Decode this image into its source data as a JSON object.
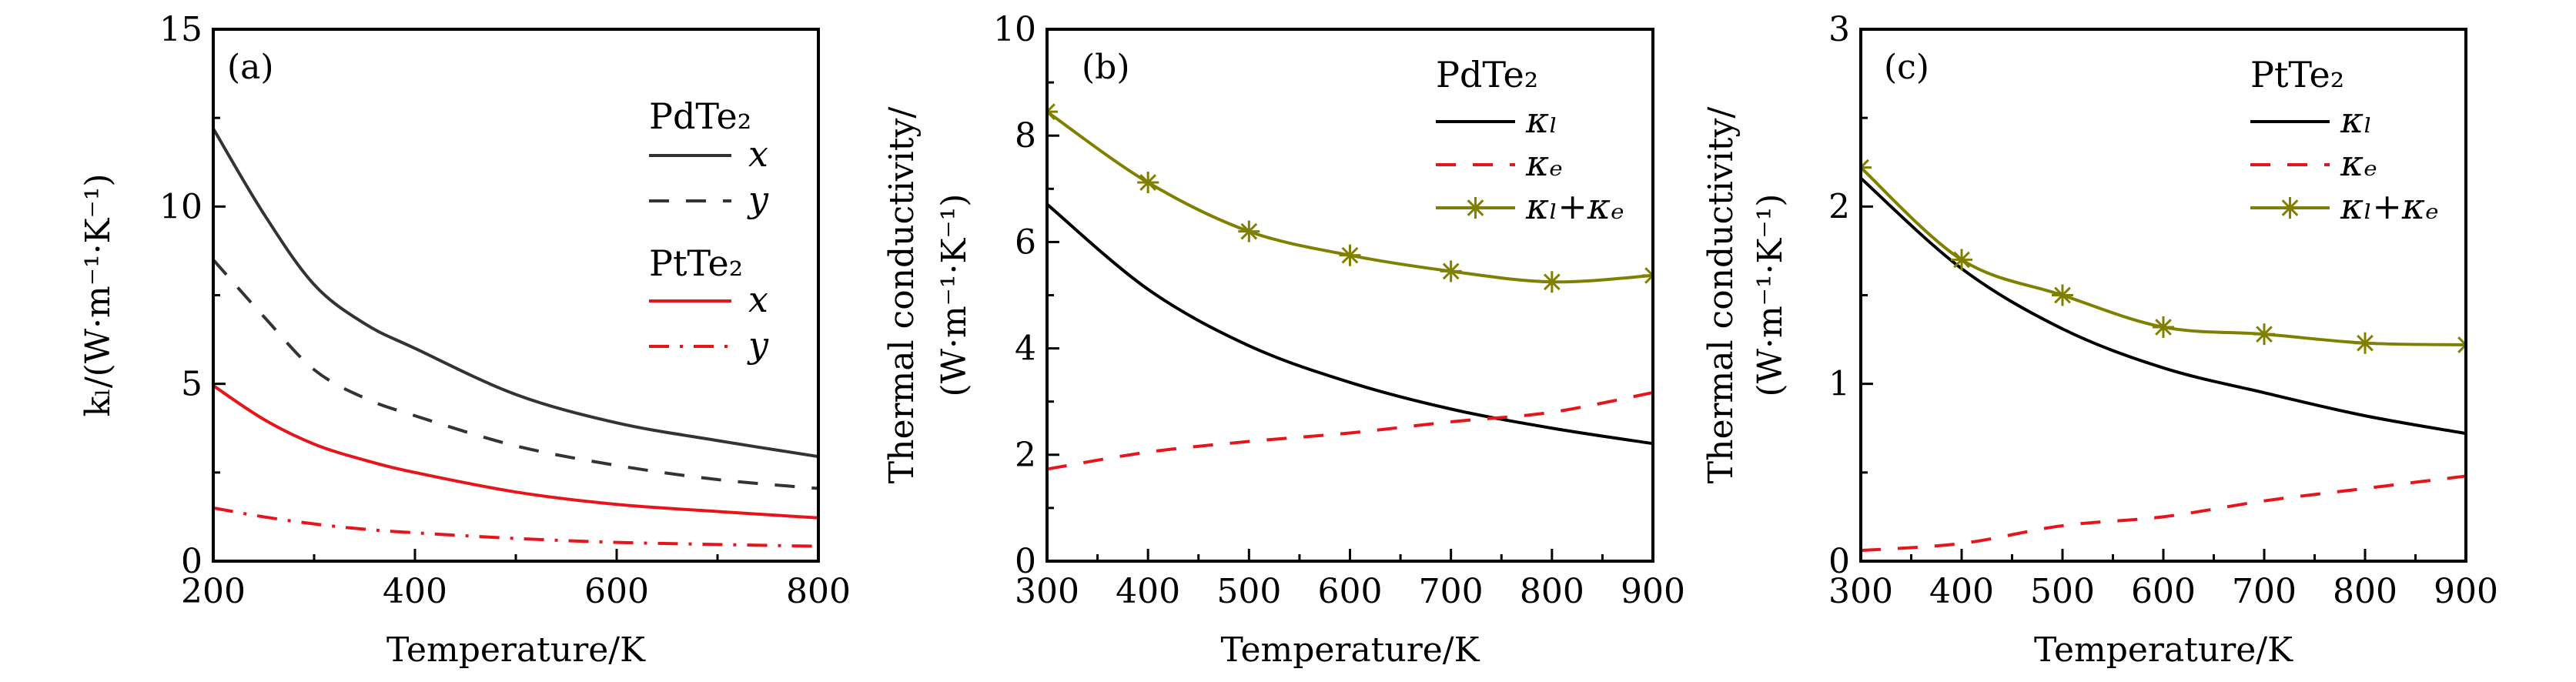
{
  "chart_data": [
    {
      "type": "line",
      "panel_label": "(a)",
      "xlabel": "Temperature/K",
      "ylabel": "kₗ/(W·m⁻¹·K⁻¹)",
      "xlim": [
        200,
        800
      ],
      "ylim": [
        0,
        15
      ],
      "xticks": [
        200,
        400,
        600,
        800
      ],
      "yticks": [
        0,
        5,
        10,
        15
      ],
      "legend_position": "right",
      "legend_groups": [
        "PdTe₂",
        "PtTe₂"
      ],
      "x": [
        200,
        250,
        300,
        350,
        400,
        500,
        600,
        700,
        800
      ],
      "series": [
        {
          "name": "x",
          "group": "PdTe₂",
          "color": "#333333",
          "style": "solid",
          "values": [
            12.2,
            9.8,
            7.8,
            6.7,
            6.0,
            4.7,
            3.9,
            3.4,
            2.95
          ]
        },
        {
          "name": "y",
          "group": "PdTe₂",
          "color": "#333333",
          "style": "dashed",
          "values": [
            8.5,
            6.9,
            5.4,
            4.6,
            4.1,
            3.25,
            2.7,
            2.3,
            2.05
          ]
        },
        {
          "name": "x",
          "group": "PtTe₂",
          "color": "#e8141c",
          "style": "solid",
          "values": [
            4.95,
            4.0,
            3.3,
            2.85,
            2.5,
            1.95,
            1.6,
            1.4,
            1.22
          ]
        },
        {
          "name": "y",
          "group": "PtTe₂",
          "color": "#e8141c",
          "style": "dashdot",
          "values": [
            1.5,
            1.25,
            1.05,
            0.9,
            0.8,
            0.64,
            0.53,
            0.47,
            0.42
          ]
        }
      ]
    },
    {
      "type": "line",
      "panel_label": "(b)",
      "xlabel": "Temperature/K",
      "ylabel": [
        "Thermal conductivity/",
        "(W·m⁻¹·K⁻¹)"
      ],
      "xlim": [
        300,
        900
      ],
      "ylim": [
        0,
        10
      ],
      "xticks": [
        300,
        400,
        500,
        600,
        700,
        800,
        900
      ],
      "yticks": [
        0,
        2,
        4,
        6,
        8,
        10
      ],
      "legend_position": "top-right",
      "legend_title": "PdTe₂",
      "x": [
        300,
        400,
        500,
        600,
        700,
        800,
        900
      ],
      "series": [
        {
          "name": "κₗ",
          "color": "#000000",
          "style": "solid",
          "values": [
            6.71,
            5.11,
            4.05,
            3.36,
            2.86,
            2.5,
            2.21
          ]
        },
        {
          "name": "κₑ",
          "color": "#e8141c",
          "style": "dashed",
          "values": [
            1.73,
            2.05,
            2.25,
            2.41,
            2.62,
            2.8,
            3.17
          ]
        },
        {
          "name": "κₗ+κₑ",
          "color": "#808000",
          "style": "solid",
          "marker": "asterisk",
          "values": [
            8.45,
            7.12,
            6.2,
            5.75,
            5.45,
            5.25,
            5.37
          ]
        }
      ]
    },
    {
      "type": "line",
      "panel_label": "(c)",
      "xlabel": "Temperature/K",
      "ylabel": [
        "Thermal conductivity/",
        "(W·m⁻¹·K⁻¹)"
      ],
      "xlim": [
        300,
        900
      ],
      "ylim": [
        0,
        3
      ],
      "xticks": [
        300,
        400,
        500,
        600,
        700,
        800,
        900
      ],
      "yticks": [
        0,
        1,
        2,
        3
      ],
      "legend_position": "top-right",
      "legend_title": "PtTe₂",
      "x": [
        300,
        400,
        500,
        600,
        700,
        800,
        900
      ],
      "series": [
        {
          "name": "κₗ",
          "color": "#000000",
          "style": "solid",
          "values": [
            2.16,
            1.65,
            1.31,
            1.09,
            0.95,
            0.82,
            0.72
          ]
        },
        {
          "name": "κₑ",
          "color": "#e8141c",
          "style": "dashed",
          "values": [
            0.06,
            0.1,
            0.2,
            0.25,
            0.34,
            0.41,
            0.48
          ]
        },
        {
          "name": "κₗ+κₑ",
          "color": "#808000",
          "style": "solid",
          "marker": "asterisk",
          "values": [
            2.22,
            1.7,
            1.5,
            1.32,
            1.28,
            1.23,
            1.22
          ]
        }
      ]
    }
  ]
}
